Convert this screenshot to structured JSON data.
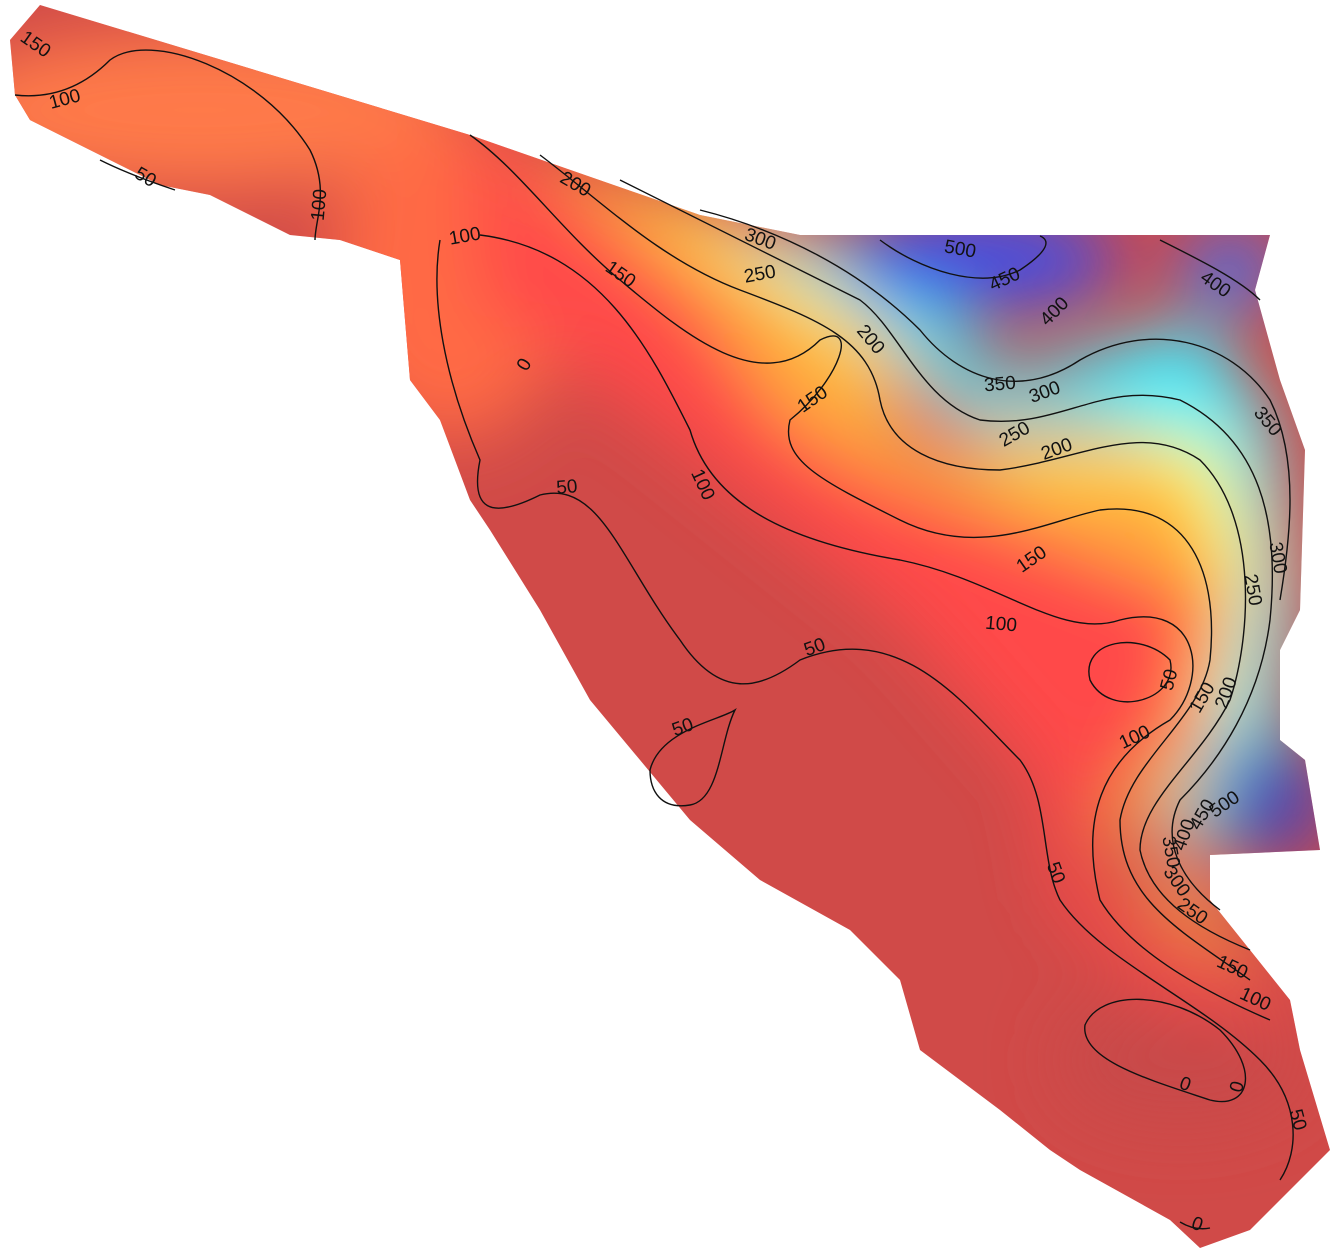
{
  "contour_labels": [
    150,
    100,
    50,
    100,
    100,
    0,
    150,
    200,
    300,
    250,
    500,
    450,
    400,
    400,
    200,
    150,
    350,
    300,
    250,
    200,
    350,
    100,
    50,
    300,
    250,
    150,
    100,
    50,
    50,
    150,
    200,
    100,
    50,
    500,
    450,
    400,
    350,
    300,
    250,
    50,
    150,
    100,
    0,
    0,
    50,
    0
  ]
}
